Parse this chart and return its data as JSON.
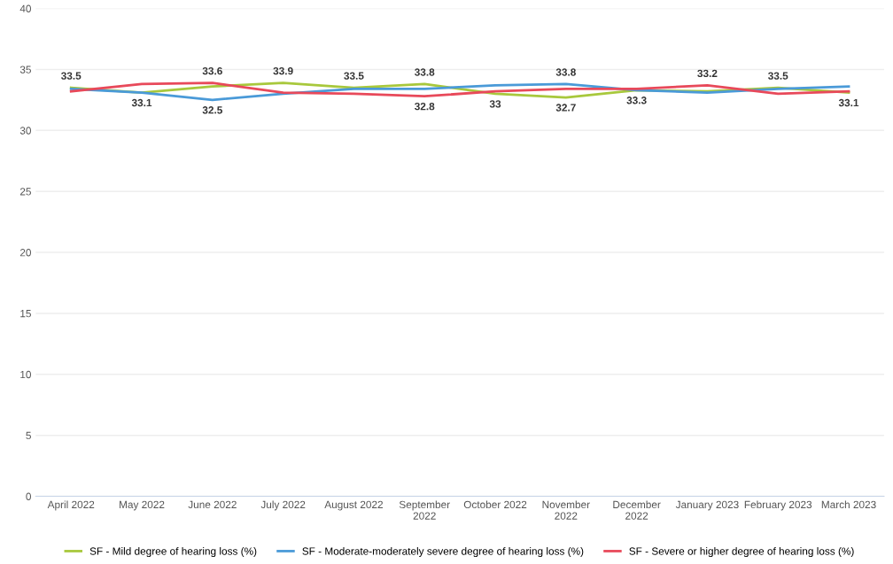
{
  "chart_data": {
    "type": "line",
    "categories": [
      "April 2022",
      "May 2022",
      "June 2022",
      "July 2022",
      "August 2022",
      "September\n2022",
      "October 2022",
      "November\n2022",
      "December\n2022",
      "January 2023",
      "February 2023",
      "March 2023"
    ],
    "series": [
      {
        "name": "SF - Mild degree of hearing loss (%)",
        "color": "#a8c83c",
        "values": [
          33.5,
          33.1,
          33.6,
          33.9,
          33.5,
          33.8,
          33.0,
          32.7,
          33.3,
          33.2,
          33.5,
          33.1
        ],
        "value_labels": [
          "33.5",
          "33.1",
          "33.6",
          "33.9",
          "33.5",
          "33.8",
          "33",
          "32.7",
          "33.3",
          "33.2",
          "33.5",
          "33.1"
        ]
      },
      {
        "name": "SF - Moderate-moderately severe degree of hearing loss (%)",
        "color": "#4a9ad8",
        "values": [
          33.4,
          33.1,
          32.5,
          33.0,
          33.4,
          33.4,
          33.7,
          33.8,
          33.3,
          33.1,
          33.4,
          33.6
        ],
        "value_labels": [
          null,
          null,
          "32.5",
          null,
          null,
          null,
          null,
          "33.8",
          null,
          null,
          null,
          null
        ]
      },
      {
        "name": "SF - Severe or higher degree of hearing loss (%)",
        "color": "#e8495a",
        "values": [
          33.2,
          33.8,
          33.9,
          33.1,
          33.0,
          32.8,
          33.2,
          33.4,
          33.4,
          33.7,
          33.0,
          33.2
        ],
        "value_labels": [
          null,
          null,
          null,
          null,
          null,
          "32.8",
          null,
          null,
          null,
          null,
          null,
          null
        ]
      }
    ],
    "ylim": [
      0,
      40
    ],
    "yticks": [
      0,
      5,
      10,
      15,
      20,
      25,
      30,
      35,
      40
    ],
    "grid": "y",
    "legend": "bottom",
    "marker": "none",
    "line_style": "solid"
  }
}
